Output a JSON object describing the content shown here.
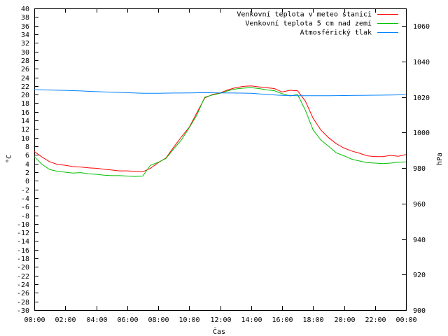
{
  "chart_data": {
    "type": "line",
    "xlabel": "Čas",
    "ylabel": "°C",
    "y2label": "hPa",
    "x_tick_labels": [
      "00:00",
      "02:00",
      "04:00",
      "06:00",
      "08:00",
      "10:00",
      "12:00",
      "14:00",
      "16:00",
      "18:00",
      "20:00",
      "22:00",
      "00:00"
    ],
    "xlim": [
      0,
      24
    ],
    "ylim": [
      -30,
      40
    ],
    "y_ticks": [
      -30,
      -28,
      -26,
      -24,
      -22,
      -20,
      -18,
      -16,
      -14,
      -12,
      -10,
      -8,
      -6,
      -4,
      -2,
      0,
      2,
      4,
      6,
      8,
      10,
      12,
      14,
      16,
      18,
      20,
      22,
      24,
      26,
      28,
      30,
      32,
      34,
      36,
      38,
      40
    ],
    "y2lim": [
      900,
      1070
    ],
    "y2_ticks": [
      900,
      920,
      940,
      960,
      980,
      1000,
      1020,
      1040,
      1060
    ],
    "grid": false,
    "legend_position": "top-right",
    "colors": {
      "air_temp": "#ff0000",
      "ground_temp": "#00c000",
      "pressure": "#0080ff"
    },
    "series": [
      {
        "name": "Venkovní teplota v meteo stanici",
        "axis": "left",
        "x": [
          0,
          0.5,
          1,
          1.5,
          2,
          2.5,
          3,
          3.5,
          4,
          4.5,
          5,
          5.5,
          6,
          6.5,
          7,
          7.5,
          8,
          8.5,
          9,
          9.5,
          10,
          10.5,
          11,
          11.5,
          12,
          12.5,
          13,
          13.5,
          14,
          14.5,
          15,
          15.5,
          16,
          16.5,
          17,
          17.5,
          18,
          18.5,
          19,
          19.5,
          20,
          20.5,
          21,
          21.5,
          22,
          22.5,
          23,
          23.5,
          24
        ],
        "values": [
          6.8,
          5.5,
          4.4,
          3.8,
          3.6,
          3.3,
          3.2,
          3.0,
          2.9,
          2.7,
          2.5,
          2.3,
          2.3,
          2.2,
          2.1,
          2.9,
          4.2,
          5.3,
          7.8,
          10.2,
          12.4,
          15.8,
          19.2,
          20.0,
          20.4,
          21.1,
          21.6,
          21.9,
          22.0,
          21.8,
          21.6,
          21.4,
          20.6,
          21.0,
          20.9,
          18.5,
          14.5,
          11.8,
          10.0,
          8.6,
          7.6,
          6.9,
          6.4,
          5.8,
          5.6,
          5.6,
          5.9,
          5.7,
          6.1
        ]
      },
      {
        "name": "Venkovní teplota 5 cm nad zemí",
        "axis": "left",
        "x": [
          0,
          0.5,
          1,
          1.5,
          2,
          2.5,
          3,
          3.5,
          4,
          4.5,
          5,
          5.5,
          6,
          6.5,
          7,
          7.5,
          8,
          8.5,
          9,
          9.5,
          10,
          10.5,
          11,
          11.5,
          12,
          12.5,
          13,
          13.5,
          14,
          14.5,
          15,
          15.5,
          16,
          16.5,
          17,
          17.5,
          18,
          18.5,
          19,
          19.5,
          20,
          20.5,
          21,
          21.5,
          22,
          22.5,
          23,
          23.5,
          24
        ],
        "values": [
          5.6,
          3.8,
          2.6,
          2.2,
          2.0,
          1.8,
          1.9,
          1.6,
          1.5,
          1.3,
          1.2,
          1.2,
          1.1,
          1.0,
          1.1,
          3.6,
          4.3,
          5.2,
          7.4,
          9.5,
          12.3,
          15.3,
          19.4,
          19.9,
          20.3,
          20.9,
          21.3,
          21.5,
          21.6,
          21.4,
          21.1,
          20.9,
          20.2,
          19.7,
          20.0,
          16.4,
          11.8,
          9.5,
          8.0,
          6.5,
          5.8,
          5.0,
          4.6,
          4.2,
          4.1,
          4.0,
          4.1,
          4.3,
          4.4
        ]
      },
      {
        "name": "Atmosférický tlak",
        "axis": "right",
        "x": [
          0,
          1,
          2,
          3,
          4,
          5,
          6,
          7,
          8,
          9,
          10,
          11,
          12,
          13,
          14,
          15,
          16,
          17,
          18,
          19,
          20,
          21,
          22,
          23,
          24
        ],
        "values": [
          1024.2,
          1024.0,
          1023.8,
          1023.5,
          1023.1,
          1022.8,
          1022.5,
          1022.2,
          1022.2,
          1022.3,
          1022.4,
          1022.5,
          1022.4,
          1022.3,
          1022.2,
          1021.5,
          1021.0,
          1020.8,
          1020.8,
          1020.8,
          1020.9,
          1021.0,
          1021.1,
          1021.2,
          1021.4
        ]
      }
    ]
  }
}
